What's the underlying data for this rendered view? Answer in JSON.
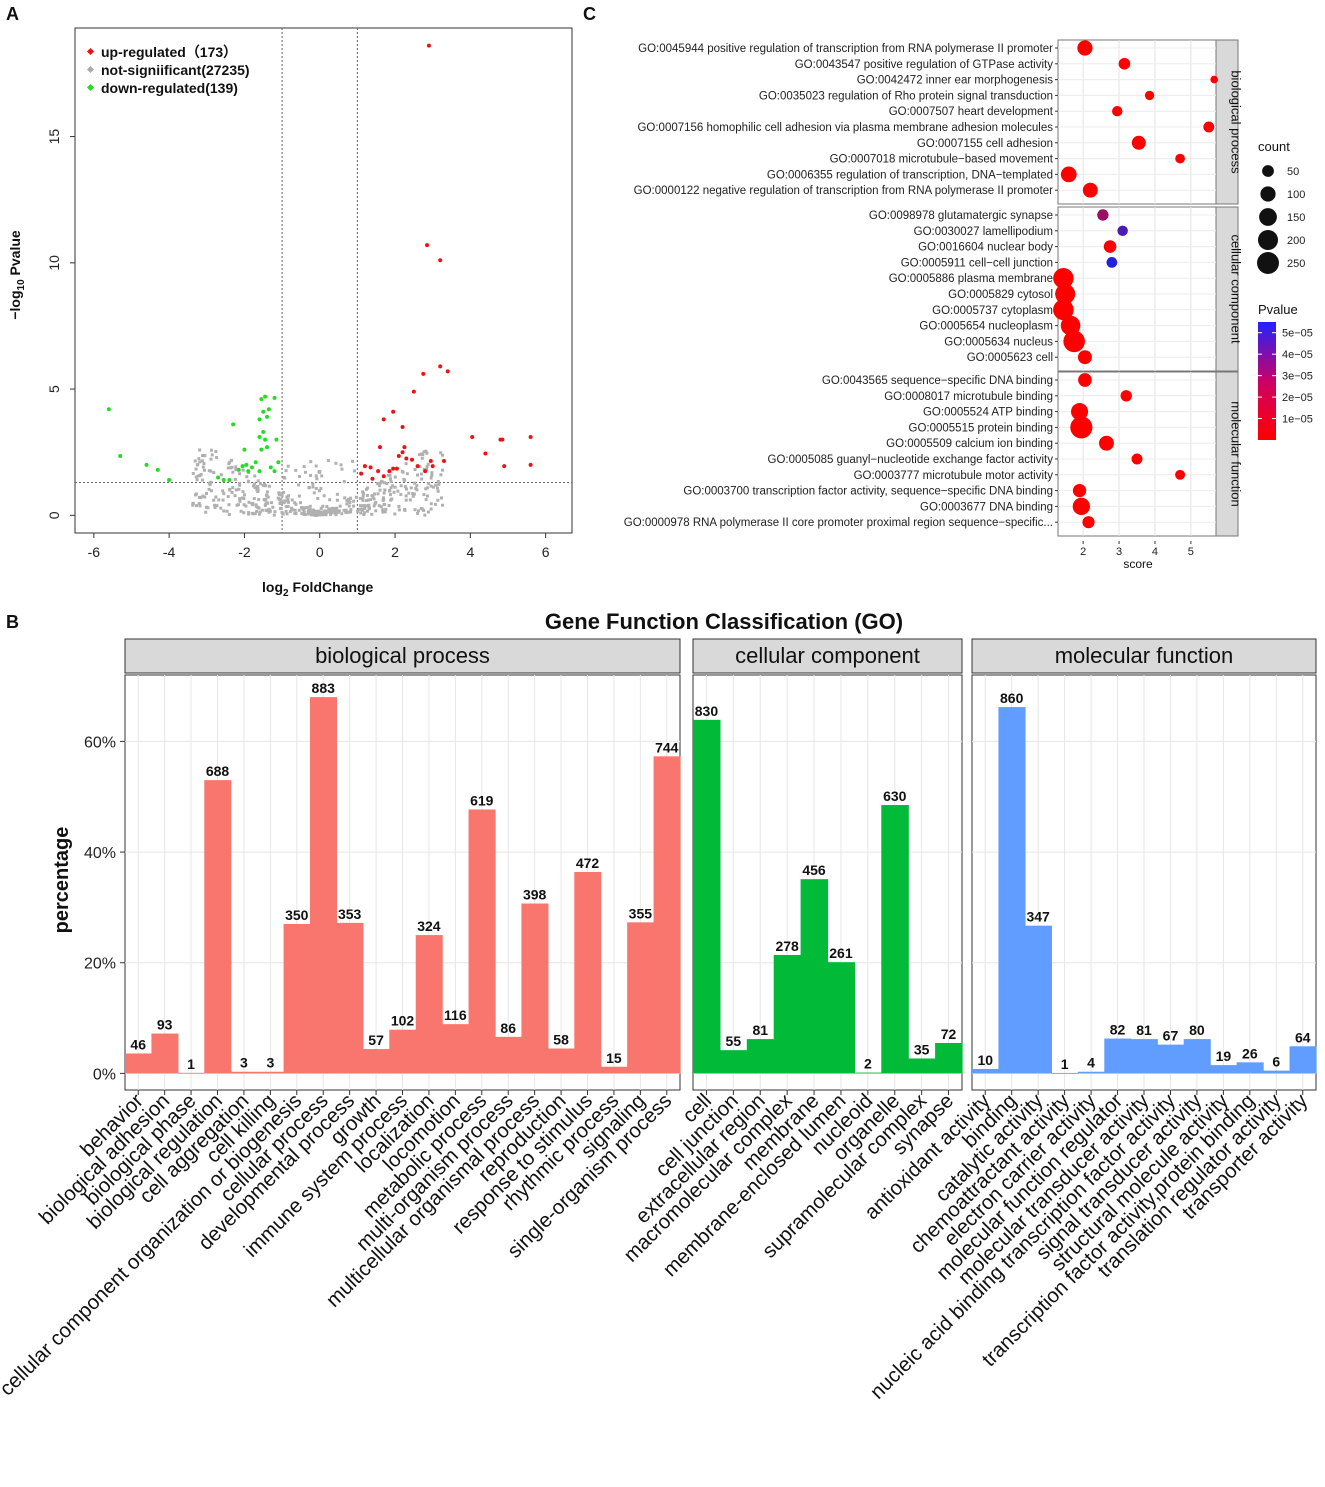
{
  "panels": {
    "a": {
      "letter": "A",
      "chart_data": {
        "type": "scatter",
        "title": "",
        "xlabel": "log2 FoldChange",
        "xlabel_main": "log",
        "xlabel_sub": "2",
        "xlabel_rest": " FoldChange",
        "ylabel": "-log10 Pvalue",
        "ylabel_main": "−log",
        "ylabel_sub": "10",
        "ylabel_rest": " Pvalue",
        "xlim": [
          -6.5,
          6.7
        ],
        "ylim": [
          -0.7,
          19.3
        ],
        "xticks": [
          -6,
          -4,
          -2,
          0,
          2,
          4,
          6
        ],
        "yticks": [
          0,
          5,
          10,
          15
        ],
        "vlines": [
          -1,
          1
        ],
        "hline": 1.3,
        "legend_position": "top-left",
        "legend": [
          {
            "label": "up-regulated（173）",
            "color": "#ee1111"
          },
          {
            "label": "not-signiificant(27235)",
            "color": "#aaaaaa"
          },
          {
            "label": "down-regulated(139)",
            "color": "#22dd22"
          }
        ],
        "series": [
          {
            "name": "up-regulated",
            "color": "#ee1111",
            "points": [
              [
                2.9,
                18.6
              ],
              [
                2.85,
                10.7
              ],
              [
                3.2,
                10.1
              ],
              [
                2.75,
                5.6
              ],
              [
                3.2,
                5.9
              ],
              [
                3.4,
                5.7
              ],
              [
                2.5,
                4.9
              ],
              [
                2.2,
                3.5
              ],
              [
                1.95,
                4.1
              ],
              [
                1.7,
                3.8
              ],
              [
                2.25,
                2.7
              ],
              [
                1.6,
                2.7
              ],
              [
                2.1,
                2.35
              ],
              [
                2.3,
                2.25
              ],
              [
                2.45,
                2.2
              ],
              [
                1.95,
                1.85
              ],
              [
                2.2,
                2.5
              ],
              [
                3.0,
                1.95
              ],
              [
                2.95,
                2.15
              ],
              [
                3.3,
                2.15
              ],
              [
                2.6,
                1.95
              ],
              [
                4.05,
                3.1
              ],
              [
                4.4,
                2.45
              ],
              [
                4.8,
                3.0
              ],
              [
                4.85,
                3.0
              ],
              [
                5.6,
                3.1
              ],
              [
                4.9,
                1.95
              ],
              [
                5.6,
                2.0
              ],
              [
                1.2,
                1.95
              ],
              [
                1.35,
                1.9
              ],
              [
                1.55,
                1.75
              ],
              [
                1.85,
                1.75
              ],
              [
                2.05,
                1.85
              ],
              [
                1.1,
                1.65
              ],
              [
                1.4,
                1.45
              ],
              [
                1.7,
                1.55
              ],
              [
                2.8,
                1.75
              ]
            ]
          },
          {
            "name": "down-regulated",
            "color": "#22dd22",
            "points": [
              [
                -5.6,
                4.2
              ],
              [
                -5.3,
                2.35
              ],
              [
                -4.6,
                2.0
              ],
              [
                -4.3,
                1.8
              ],
              [
                -4.0,
                1.4
              ],
              [
                -2.3,
                3.6
              ],
              [
                -2.0,
                2.6
              ],
              [
                -1.55,
                4.6
              ],
              [
                -1.45,
                4.7
              ],
              [
                -1.5,
                4.1
              ],
              [
                -1.4,
                3.9
              ],
              [
                -1.6,
                3.8
              ],
              [
                -1.35,
                4.2
              ],
              [
                -1.5,
                3.3
              ],
              [
                -1.45,
                3.0
              ],
              [
                -1.6,
                3.1
              ],
              [
                -1.4,
                2.7
              ],
              [
                -1.55,
                2.6
              ],
              [
                -1.95,
                2.0
              ],
              [
                -2.05,
                1.95
              ],
              [
                -2.15,
                1.8
              ],
              [
                -1.9,
                1.75
              ],
              [
                -1.8,
                1.9
              ],
              [
                -1.6,
                1.75
              ],
              [
                -1.3,
                1.9
              ],
              [
                -1.2,
                1.75
              ],
              [
                -1.1,
                2.1
              ],
              [
                -1.15,
                3.0
              ],
              [
                -1.2,
                4.65
              ],
              [
                -2.4,
                1.4
              ],
              [
                -2.55,
                1.4
              ],
              [
                -2.7,
                1.5
              ],
              [
                -1.7,
                2.1
              ]
            ]
          }
        ]
      }
    },
    "b": {
      "letter": "B",
      "chart_data": {
        "type": "bar",
        "title": "Gene Function Classification (GO)",
        "xlabel": "",
        "ylabel": "percentage",
        "ylim": [
          -3,
          72
        ],
        "yticks": [
          0,
          20,
          40,
          60
        ],
        "ytick_labels": [
          "0%",
          "20%",
          "40%",
          "60%"
        ],
        "facets": [
          {
            "name": "biological process",
            "color": "#f8766d",
            "categories": [
              "behavior",
              "biological adhesion",
              "biological phase",
              "biological regulation",
              "cell aggregation",
              "cell killing",
              "cellular component organization or biogenesis",
              "cellular process",
              "developmental process",
              "growth",
              "immune system process",
              "localization",
              "locomotion",
              "metabolic process",
              "multi-organism process",
              "multicellular organismal process",
              "reproduction",
              "response to stimulus",
              "rhythmic process",
              "signaling",
              "single-organism process"
            ],
            "values": [
              3.6,
              7.2,
              0.1,
              53.0,
              0.3,
              0.3,
              27.0,
              68.0,
              27.2,
              4.4,
              7.9,
              25.0,
              8.9,
              47.7,
              6.6,
              30.7,
              4.5,
              36.4,
              1.2,
              27.3,
              57.3
            ],
            "labels": [
              "46",
              "93",
              "1",
              "688",
              "3",
              "3",
              "350",
              "883",
              "353",
              "57",
              "102",
              "324",
              "116",
              "619",
              "86",
              "398",
              "58",
              "472",
              "15",
              "355",
              "744"
            ]
          },
          {
            "name": "cellular component",
            "color": "#00ba38",
            "categories": [
              "cell",
              "cell junction",
              "extracellular region",
              "macromolecular complex",
              "membrane",
              "membrane-enclosed lumen",
              "nucleoid",
              "organelle",
              "supramolecular complex",
              "synapse"
            ],
            "values": [
              63.9,
              4.2,
              6.2,
              21.4,
              35.1,
              20.1,
              0.15,
              48.5,
              2.7,
              5.5
            ],
            "labels": [
              "830",
              "55",
              "81",
              "278",
              "456",
              "261",
              "2",
              "630",
              "35",
              "72"
            ]
          },
          {
            "name": "molecular function",
            "color": "#619cff",
            "categories": [
              "antioxidant activity",
              "binding",
              "catalytic activity",
              "chemoattractant activity",
              "electron carrier activity",
              "molecular function regulator",
              "molecular transducer activity",
              "nucleic acid binding transcription factor activity",
              "signal transducer activity",
              "structural molecule activity",
              "transcription factor activity,protein binding",
              "translation regulator activity",
              "transporter activity"
            ],
            "values": [
              0.8,
              66.2,
              26.7,
              0.08,
              0.3,
              6.3,
              6.2,
              5.2,
              6.2,
              1.5,
              2.0,
              0.5,
              4.9
            ],
            "labels": [
              "10",
              "860",
              "347",
              "1",
              "4",
              "82",
              "81",
              "67",
              "80",
              "19",
              "26",
              "6",
              "64"
            ]
          }
        ]
      }
    },
    "c": {
      "letter": "C",
      "chart_data": {
        "type": "scatter",
        "title": "",
        "xlabel": "score",
        "ylabel": "",
        "xlim": [
          1.3,
          5.7
        ],
        "xticks": [
          2,
          3,
          4,
          5
        ],
        "legend_position": "right",
        "size_legend_title": "count",
        "size_legend": [
          50,
          100,
          150,
          200,
          250
        ],
        "color_legend_title": "Pvalue",
        "color_legend_ticks": [
          "5e−05",
          "4e−05",
          "3e−05",
          "2e−05",
          "1e−05"
        ],
        "color_legend_values": [
          5e-05,
          4e-05,
          3e-05,
          2e-05,
          1e-05
        ],
        "color_scale": {
          "low": "#ff0000",
          "high": "#2222ff"
        },
        "facets": [
          {
            "name": "biological process",
            "terms": [
              {
                "label": "GO:0045944  positive regulation of transcription from RNA polymerase II promoter",
                "score": 2.05,
                "count": 100,
                "pvalue": 0
              },
              {
                "label": "GO:0043547  positive regulation of GTPase activity",
                "score": 3.15,
                "count": 48,
                "pvalue": 0
              },
              {
                "label": "GO:0042472  inner ear morphogenesis",
                "score": 5.65,
                "count": 12,
                "pvalue": 0
              },
              {
                "label": "GO:0035023  regulation of Rho protein signal transduction",
                "score": 3.85,
                "count": 25,
                "pvalue": 0
              },
              {
                "label": "GO:0007507  heart development",
                "score": 2.95,
                "count": 35,
                "pvalue": 0
              },
              {
                "label": "GO:0007156  homophilic cell adhesion via plasma membrane adhesion molecules",
                "score": 5.5,
                "count": 40,
                "pvalue": 0
              },
              {
                "label": "GO:0007155  cell adhesion",
                "score": 3.55,
                "count": 80,
                "pvalue": 0
              },
              {
                "label": "GO:0007018  microtubule−based movement",
                "score": 4.7,
                "count": 28,
                "pvalue": 0
              },
              {
                "label": "GO:0006355  regulation of transcription, DNA−templated",
                "score": 1.6,
                "count": 110,
                "pvalue": 0
              },
              {
                "label": "GO:0000122  negative regulation of transcription from RNA polymerase II promoter",
                "score": 2.2,
                "count": 95,
                "pvalue": 0
              }
            ]
          },
          {
            "name": "cellular component",
            "terms": [
              {
                "label": "GO:0098978  glutamatergic synapse",
                "score": 2.55,
                "count": 45,
                "pvalue": 2.5e-05
              },
              {
                "label": "GO:0030027  lamellipodium",
                "score": 3.1,
                "count": 35,
                "pvalue": 4.5e-05
              },
              {
                "label": "GO:0016604  nuclear body",
                "score": 2.75,
                "count": 60,
                "pvalue": 0
              },
              {
                "label": "GO:0005911  cell−cell junction",
                "score": 2.8,
                "count": 38,
                "pvalue": 5.5e-05
              },
              {
                "label": "GO:0005886  plasma membrane",
                "score": 1.45,
                "count": 210,
                "pvalue": 0
              },
              {
                "label": "GO:0005829  cytosol",
                "score": 1.5,
                "count": 200,
                "pvalue": 0
              },
              {
                "label": "GO:0005737  cytoplasm",
                "score": 1.45,
                "count": 215,
                "pvalue": 0
              },
              {
                "label": "GO:0005654  nucleoplasm",
                "score": 1.65,
                "count": 190,
                "pvalue": 0
              },
              {
                "label": "GO:0005634  nucleus",
                "score": 1.75,
                "count": 240,
                "pvalue": 0
              },
              {
                "label": "GO:0005623  cell",
                "score": 2.05,
                "count": 80,
                "pvalue": 0
              }
            ]
          },
          {
            "name": "molecular function",
            "terms": [
              {
                "label": "GO:0043565  sequence−specific DNA binding",
                "score": 2.05,
                "count": 75,
                "pvalue": 0
              },
              {
                "label": "GO:0008017  microtubule binding",
                "score": 3.2,
                "count": 45,
                "pvalue": 0
              },
              {
                "label": "GO:0005524  ATP binding",
                "score": 1.9,
                "count": 135,
                "pvalue": 0
              },
              {
                "label": "GO:0005515  protein binding",
                "score": 1.95,
                "count": 255,
                "pvalue": 0
              },
              {
                "label": "GO:0005509  calcium ion binding",
                "score": 2.65,
                "count": 95,
                "pvalue": 0
              },
              {
                "label": "GO:0005085  guanyl−nucleotide exchange factor activity",
                "score": 3.5,
                "count": 40,
                "pvalue": 0
              },
              {
                "label": "GO:0003777  microtubule motor activity",
                "score": 4.7,
                "count": 30,
                "pvalue": 0
              },
              {
                "label": "GO:0003700  transcription factor activity, sequence−specific DNA binding",
                "score": 1.9,
                "count": 70,
                "pvalue": 0
              },
              {
                "label": "GO:0003677  DNA binding",
                "score": 1.95,
                "count": 140,
                "pvalue": 0
              },
              {
                "label": "GO:0000978  RNA polymerase II core promoter proximal region sequence−specific...",
                "score": 2.15,
                "count": 55,
                "pvalue": 0
              }
            ]
          }
        ]
      }
    }
  }
}
